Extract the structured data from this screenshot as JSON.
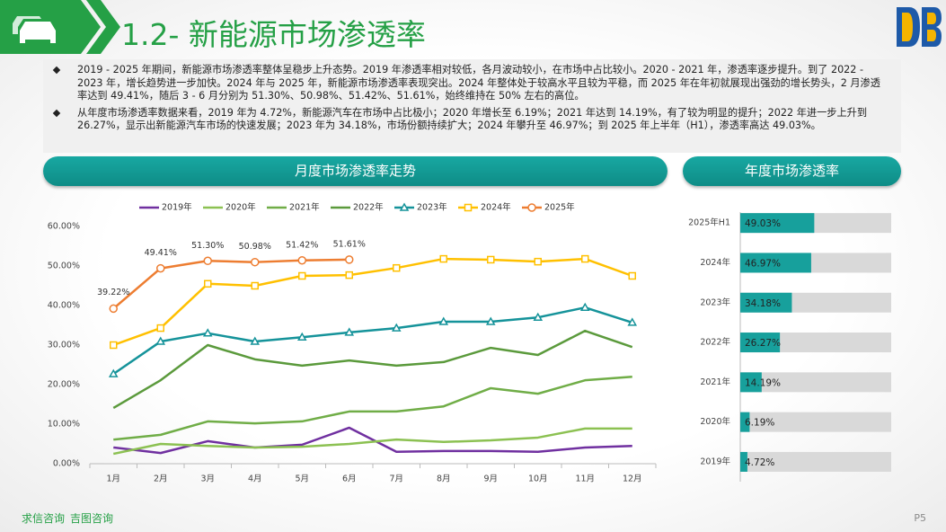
{
  "header": {
    "title": "1.2- 新能源市场渗透率"
  },
  "bullets": [
    "2019 - 2025 年期间，新能源市场渗透率整体呈稳步上升态势。2019 年渗透率相对较低，各月波动较小，在市场中占比较小。2020 - 2021 年，渗透率逐步提升。到了 2022 - 2023 年，增长趋势进一步加快。2024 年与 2025 年，新能源市场渗透率表现突出。2024 年整体处于较高水平且较为平稳，而 2025 年在年初就展现出强劲的增长势头，2 月渗透率达到 49.41%，随后 3 - 6 月分别为 51.30%、50.98%、51.42%、51.61%，始终维持在 50% 左右的高位。",
    "从年度市场渗透率数据来看，2019 年为 4.72%，新能源汽车在市场中占比极小；2020 年增长至 6.19%；2021 年达到 14.19%，有了较为明显的提升；2022 年进一步上升到 26.27%，显示出新能源汽车市场的快速发展；2023 年为 34.18%，市场份额持续扩大；2024 年攀升至 46.97%；到 2025 年上半年（H1），渗透率高达 49.03%。"
  ],
  "footer": {
    "brands": [
      "求信咨询",
      "吉图咨询"
    ],
    "page": "P5"
  },
  "chart_data": [
    {
      "type": "line",
      "title": "月度市场渗透率走势",
      "categories": [
        "1月",
        "2月",
        "3月",
        "4月",
        "5月",
        "6月",
        "7月",
        "8月",
        "9月",
        "10月",
        "11月",
        "12月"
      ],
      "ylim": [
        0,
        60
      ],
      "yticks": [
        {
          "value": 0,
          "label": "0.00%"
        },
        {
          "value": 10,
          "label": "10.00%"
        },
        {
          "value": 20,
          "label": "20.00%"
        },
        {
          "value": 30,
          "label": "30.00%"
        },
        {
          "value": 40,
          "label": "40.00%"
        },
        {
          "value": 50,
          "label": "50.00%"
        },
        {
          "value": 60,
          "label": "60.00%"
        }
      ],
      "legend": "top",
      "series": [
        {
          "name": "2019年",
          "color": "#7030a0",
          "marker": "none",
          "values": [
            4.1,
            2.7,
            5.7,
            4.1,
            4.8,
            9.1,
            3.0,
            3.2,
            3.2,
            3.0,
            4.1,
            4.5
          ]
        },
        {
          "name": "2020年",
          "color": "#8cc152",
          "marker": "none",
          "values": [
            2.5,
            5.0,
            4.5,
            4.1,
            4.3,
            5.0,
            6.1,
            5.5,
            5.9,
            6.6,
            8.9,
            8.9
          ]
        },
        {
          "name": "2021年",
          "color": "#70ad47",
          "marker": "none",
          "values": [
            6.1,
            7.3,
            10.7,
            10.2,
            10.7,
            13.2,
            13.2,
            14.5,
            19.1,
            17.7,
            21.1,
            22.0
          ]
        },
        {
          "name": "2022年",
          "color": "#5b9a3c",
          "marker": "none",
          "values": [
            14.1,
            21.1,
            30.0,
            26.4,
            24.8,
            26.1,
            24.8,
            25.7,
            29.3,
            27.5,
            33.6,
            29.5
          ]
        },
        {
          "name": "2023年",
          "color": "#15939a",
          "marker": "triangle",
          "values": [
            22.7,
            30.9,
            33.0,
            30.9,
            32.0,
            33.2,
            34.3,
            35.9,
            35.9,
            37.0,
            39.5,
            35.7
          ]
        },
        {
          "name": "2024年",
          "color": "#ffc000",
          "marker": "square",
          "values": [
            30.0,
            34.3,
            45.5,
            45.0,
            47.5,
            47.7,
            49.5,
            51.8,
            51.6,
            51.1,
            51.8,
            47.5
          ]
        },
        {
          "name": "2025年",
          "color": "#ed7d31",
          "marker": "circle",
          "values": [
            39.22,
            49.41,
            51.3,
            50.98,
            51.42,
            51.61,
            null,
            null,
            null,
            null,
            null,
            null
          ],
          "value_labels": [
            "39.22%",
            "49.41%",
            "51.30%",
            "50.98%",
            "51.42%",
            "51.61%",
            null,
            null,
            null,
            null,
            null,
            null
          ]
        }
      ]
    },
    {
      "type": "bar",
      "orientation": "horizontal",
      "title": "年度市场渗透率",
      "categories": [
        "2025年H1",
        "2024年",
        "2023年",
        "2022年",
        "2021年",
        "2020年",
        "2019年"
      ],
      "values": [
        49.03,
        46.97,
        34.18,
        26.27,
        14.19,
        6.19,
        4.72
      ],
      "value_labels": [
        "49.03%",
        "46.97%",
        "34.18%",
        "26.27%",
        "14.19%",
        "6.19%",
        "4.72%"
      ],
      "xlim": [
        0,
        100
      ],
      "color": "#17a09c",
      "track_color": "#d9d9d9"
    }
  ]
}
